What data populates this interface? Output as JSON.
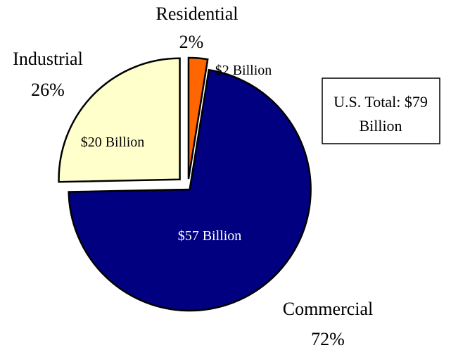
{
  "chart_data": {
    "type": "pie",
    "slices": [
      {
        "label": "Residential",
        "percent_label": "2%",
        "value_label": "$2 Billion",
        "value": 2,
        "color": "#ff6600",
        "text_color": "#000000"
      },
      {
        "label": "Commercial",
        "percent_label": "72%",
        "value_label": "$57 Billion",
        "value": 57,
        "color": "#000080",
        "text_color": "#ffffff"
      },
      {
        "label": "Industrial",
        "percent_label": "26%",
        "value_label": "$20 Billion",
        "value": 20,
        "color": "#ffffcc",
        "text_color": "#000000"
      }
    ],
    "exploded": true,
    "legend": "none",
    "total_box": {
      "line1": "U.S. Total: $79",
      "line2": "Billion"
    }
  }
}
